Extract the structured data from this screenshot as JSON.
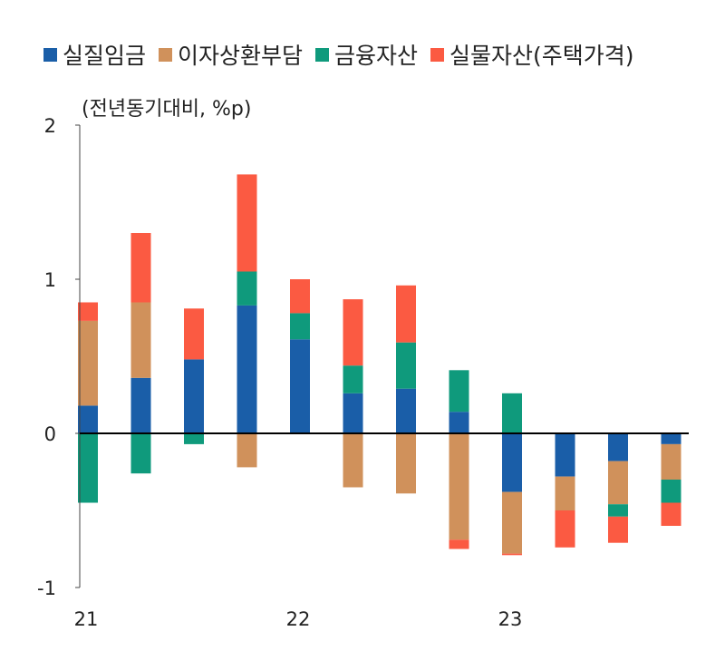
{
  "chart_data": {
    "type": "bar",
    "stacked": true,
    "unit_label": "(전년동기대비, %p)",
    "categories": [
      "21Q1",
      "21Q2",
      "21Q3",
      "21Q4",
      "22Q1",
      "22Q2",
      "22Q3",
      "22Q4",
      "23Q1",
      "23Q2",
      "23Q3",
      "23Q4"
    ],
    "x_tick_labels": [
      {
        "index": 0,
        "label": "21"
      },
      {
        "index": 4,
        "label": "22"
      },
      {
        "index": 8,
        "label": "23"
      }
    ],
    "y_ticks": [
      "2",
      "1",
      "0",
      "-1"
    ],
    "ylim": [
      -1,
      2
    ],
    "grid": false,
    "legend_position": "top",
    "series": [
      {
        "name": "실질임금",
        "color": "#1a5ea8",
        "values": [
          0.18,
          0.36,
          0.48,
          0.83,
          0.61,
          0.26,
          0.29,
          0.14,
          -0.38,
          -0.28,
          -0.18,
          -0.07
        ]
      },
      {
        "name": "이자상환부담",
        "color": "#d0915b",
        "values": [
          0.55,
          0.49,
          0,
          -0.22,
          0,
          -0.35,
          -0.39,
          -0.69,
          -0.4,
          -0.22,
          -0.28,
          -0.23
        ]
      },
      {
        "name": "금융자산",
        "color": "#0f9a7c",
        "values": [
          -0.45,
          -0.26,
          -0.07,
          0.22,
          0.17,
          0.18,
          0.3,
          0.27,
          0.26,
          0,
          -0.08,
          -0.15
        ]
      },
      {
        "name": "실물자산(주택가격)",
        "color": "#fb5a42",
        "values": [
          0.12,
          0.45,
          0.33,
          0.63,
          0.22,
          0.43,
          0.37,
          -0.06,
          -0.01,
          -0.24,
          -0.17,
          -0.15
        ]
      }
    ]
  }
}
